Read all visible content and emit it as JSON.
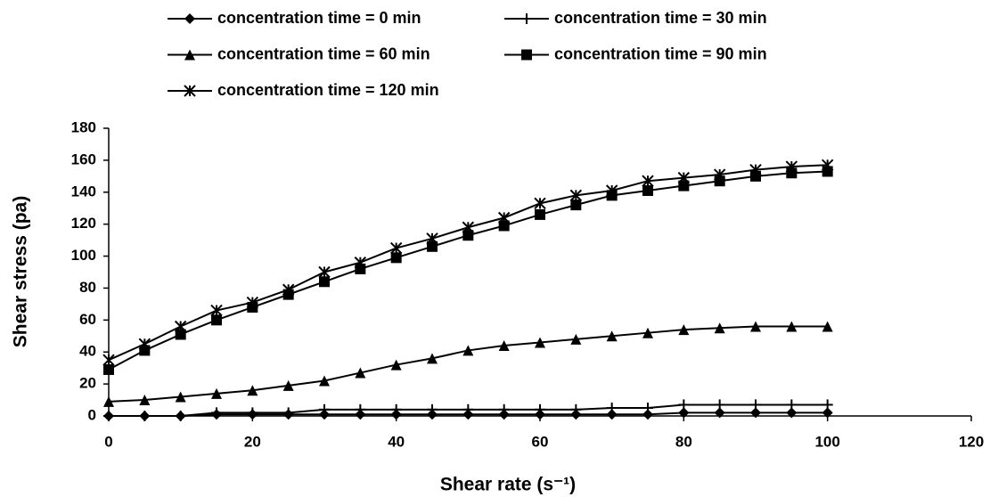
{
  "chart_data": {
    "type": "line",
    "x_label": "Shear rate (s⁻¹)",
    "y_label": "Shear stress (pa)",
    "x": [
      0,
      5,
      10,
      15,
      20,
      25,
      30,
      35,
      40,
      45,
      50,
      55,
      60,
      65,
      70,
      75,
      80,
      85,
      90,
      95,
      100
    ],
    "series": [
      {
        "name": "concentration time = 0 min",
        "color": "#000000",
        "marker": "diamond",
        "values": [
          0,
          0,
          0,
          1,
          1,
          1,
          1,
          1,
          1,
          1,
          1,
          1,
          1,
          1,
          1,
          1,
          2,
          2,
          2,
          2,
          2
        ]
      },
      {
        "name": "concentration time = 30 min",
        "color": "#000000",
        "marker": "plus",
        "values": [
          0,
          0,
          0,
          2,
          2,
          2,
          4,
          4,
          4,
          4,
          4,
          4,
          4,
          4,
          5,
          5,
          7,
          7,
          7,
          7,
          7
        ]
      },
      {
        "name": "concentration time = 60 min",
        "color": "#000000",
        "marker": "triangle",
        "values": [
          9,
          10,
          12,
          14,
          16,
          19,
          22,
          27,
          32,
          36,
          41,
          44,
          46,
          48,
          50,
          52,
          54,
          55,
          56,
          56,
          56
        ]
      },
      {
        "name": "concentration time = 90 min",
        "color": "#000000",
        "marker": "square",
        "values": [
          29,
          41,
          51,
          60,
          68,
          76,
          84,
          92,
          99,
          106,
          113,
          119,
          126,
          132,
          138,
          141,
          144,
          147,
          150,
          152,
          153
        ]
      },
      {
        "name": "concentration time = 120 min",
        "color": "#000000",
        "marker": "asterisk",
        "values": [
          35,
          45,
          56,
          66,
          71,
          79,
          90,
          96,
          105,
          111,
          118,
          124,
          133,
          138,
          141,
          147,
          149,
          151,
          154,
          156,
          157
        ]
      }
    ],
    "xlim": [
      0,
      120
    ],
    "xticks": [
      0,
      20,
      40,
      60,
      80,
      100,
      120
    ],
    "ylim": [
      0,
      180
    ],
    "yticks": [
      0,
      20,
      40,
      60,
      80,
      100,
      120,
      140,
      160,
      180
    ],
    "grid": false,
    "legend": "top"
  }
}
